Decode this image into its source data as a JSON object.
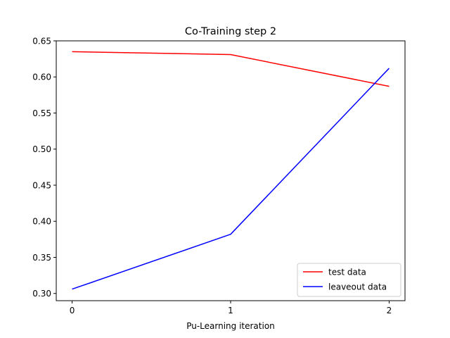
{
  "chart_data": {
    "type": "line",
    "title": "Co-Training step 2",
    "xlabel": "Pu-Learning iteration",
    "ylabel": "",
    "x": [
      0,
      1,
      2
    ],
    "xticks": [
      "0",
      "1",
      "2"
    ],
    "xlim": [
      -0.1,
      2.1
    ],
    "ylim": [
      0.29,
      0.65
    ],
    "yticks": [
      "0.30",
      "0.35",
      "0.40",
      "0.45",
      "0.50",
      "0.55",
      "0.60",
      "0.65"
    ],
    "grid": false,
    "legend_position": "lower-right",
    "series": [
      {
        "name": "test data",
        "color": "#ff0000",
        "values": [
          0.635,
          0.631,
          0.587
        ]
      },
      {
        "name": "leaveout data",
        "color": "#0000ff",
        "values": [
          0.306,
          0.382,
          0.612
        ]
      }
    ]
  }
}
